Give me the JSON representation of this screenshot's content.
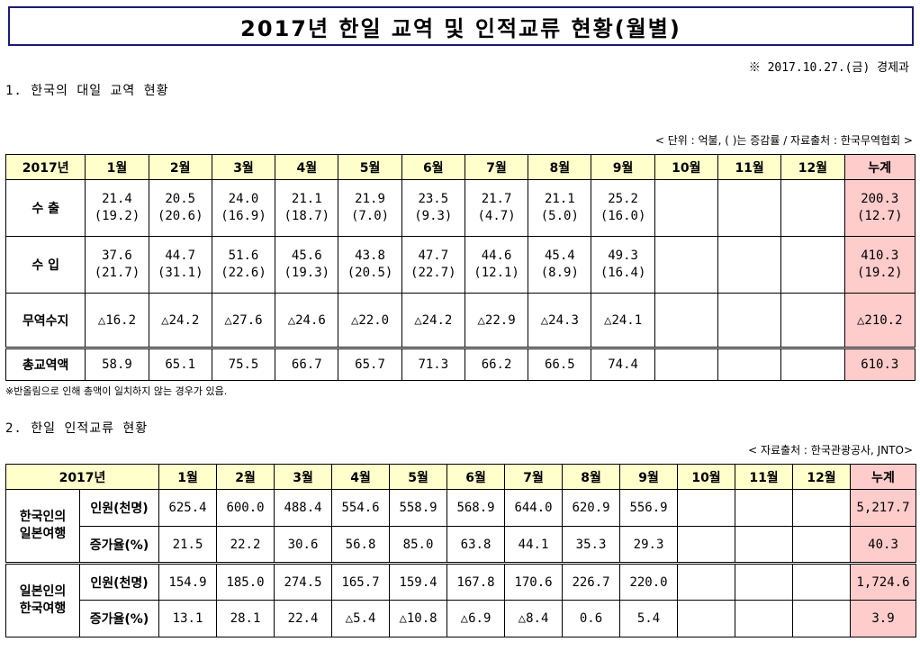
{
  "title": "2017년 한일 교역 및 인적교류 현황(월별)",
  "date_note": "※ 2017.10.27.(금) 경제과",
  "section1": {
    "title": "1. 한국의 대일 교역 현황",
    "source": "< 단위 : 억불, (  )는 증감률 / 자료출처 : 한국무역협회 >",
    "year_label": "2017년",
    "months": [
      "1월",
      "2월",
      "3월",
      "4월",
      "5월",
      "6월",
      "7월",
      "8월",
      "9월",
      "10월",
      "11월",
      "12월"
    ],
    "total_label": "누계",
    "rows": [
      {
        "label": "수  출",
        "values": [
          "21.4",
          "20.5",
          "24.0",
          "21.1",
          "21.9",
          "23.5",
          "21.7",
          "21.1",
          "25.2",
          "",
          "",
          ""
        ],
        "rates": [
          "(19.2)",
          "(20.6)",
          "(16.9)",
          "(18.7)",
          "(7.0)",
          "(9.3)",
          "(4.7)",
          "(5.0)",
          "(16.0)",
          "",
          "",
          ""
        ],
        "total": "200.3",
        "total_rate": "(12.7)"
      },
      {
        "label": "수  입",
        "values": [
          "37.6",
          "44.7",
          "51.6",
          "45.6",
          "43.8",
          "47.7",
          "44.6",
          "45.4",
          "49.3",
          "",
          "",
          ""
        ],
        "rates": [
          "(21.7)",
          "(31.1)",
          "(22.6)",
          "(19.3)",
          "(20.5)",
          "(22.7)",
          "(12.1)",
          "(8.9)",
          "(16.4)",
          "",
          "",
          ""
        ],
        "total": "410.3",
        "total_rate": "(19.2)"
      }
    ],
    "balance": {
      "label": "무역수지",
      "values": [
        "△16.2",
        "△24.2",
        "△27.6",
        "△24.6",
        "△22.0",
        "△24.2",
        "△22.9",
        "△24.3",
        "△24.1",
        "",
        "",
        ""
      ],
      "total": "△210.2"
    },
    "trade_total": {
      "label": "총교역액",
      "values": [
        "58.9",
        "65.1",
        "75.5",
        "66.7",
        "65.7",
        "71.3",
        "66.2",
        "66.5",
        "74.4",
        "",
        "",
        ""
      ],
      "total": "610.3"
    },
    "footnote": "※반올림으로 인해 총액이 일치하지 않는 경우가 있음."
  },
  "section2": {
    "title": "2. 한일 인적교류 현황",
    "source": "< 자료출처 : 한국관광공사, JNTO>",
    "year_label": "2017년",
    "months": [
      "1월",
      "2월",
      "3월",
      "4월",
      "5월",
      "6월",
      "7월",
      "8월",
      "9월",
      "10월",
      "11월",
      "12월"
    ],
    "total_label": "누계",
    "groups": [
      {
        "label_line1": "한국인의",
        "label_line2": "일본여행",
        "rows": [
          {
            "label": "인원(천명)",
            "values": [
              "625.4",
              "600.0",
              "488.4",
              "554.6",
              "558.9",
              "568.9",
              "644.0",
              "620.9",
              "556.9",
              "",
              "",
              ""
            ],
            "total": "5,217.7"
          },
          {
            "label": "증가율(%)",
            "values": [
              "21.5",
              "22.2",
              "30.6",
              "56.8",
              "85.0",
              "63.8",
              "44.1",
              "35.3",
              "29.3",
              "",
              "",
              ""
            ],
            "total": "40.3"
          }
        ]
      },
      {
        "label_line1": "일본인의",
        "label_line2": "한국여행",
        "rows": [
          {
            "label": "인원(천명)",
            "values": [
              "154.9",
              "185.0",
              "274.5",
              "165.7",
              "159.4",
              "167.8",
              "170.6",
              "226.7",
              "220.0",
              "",
              "",
              ""
            ],
            "total": "1,724.6"
          },
          {
            "label": "증가율(%)",
            "values": [
              "13.1",
              "28.1",
              "22.4",
              "△5.4",
              "△10.8",
              "△6.9",
              "△8.4",
              "0.6",
              "5.4",
              "",
              "",
              ""
            ],
            "total": "3.9"
          }
        ]
      }
    ]
  },
  "colors": {
    "header_bg": "#ffffcc",
    "total_bg": "#ffcccc",
    "title_border": "#1a1a7a"
  }
}
